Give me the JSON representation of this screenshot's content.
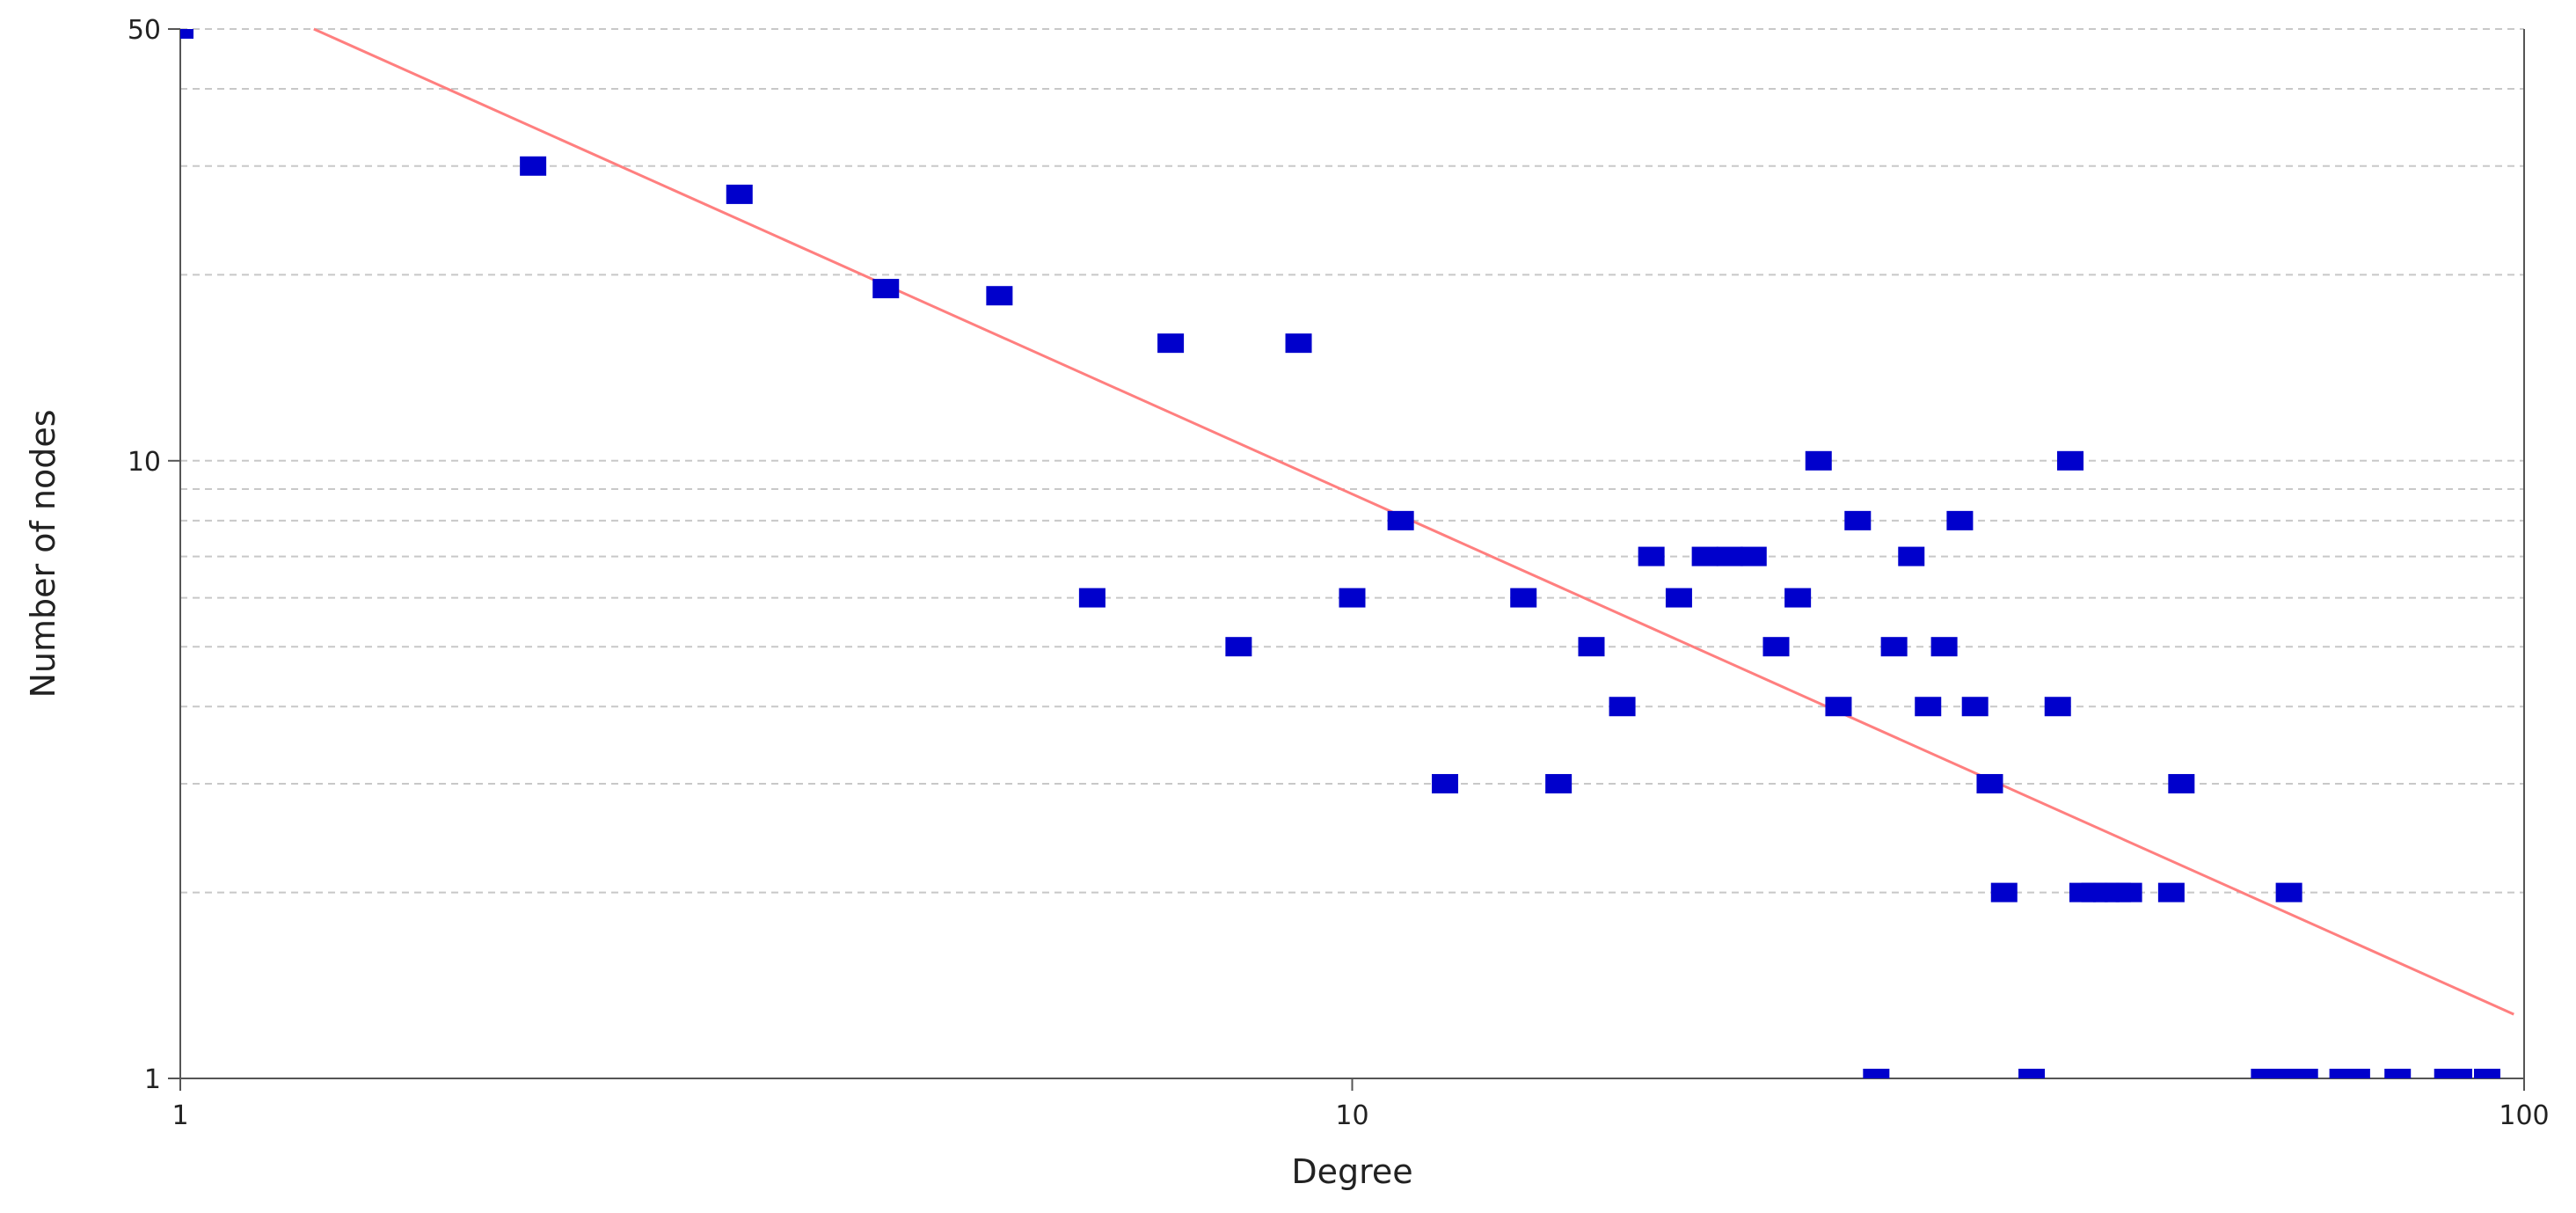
{
  "chart_data": {
    "type": "scatter",
    "title": "",
    "xlabel": "Degree",
    "ylabel": "Number of nodes",
    "xscale": "log",
    "yscale": "log",
    "xlim": [
      1,
      100
    ],
    "ylim": [
      1,
      50
    ],
    "x_ticks": [
      1,
      10,
      100
    ],
    "x_tick_labels": [
      "1",
      "10",
      "100"
    ],
    "y_ticks": [
      1,
      10,
      50
    ],
    "y_tick_labels": [
      "1",
      "10",
      "50"
    ],
    "y_grid": [
      2,
      3,
      4,
      5,
      6,
      7,
      8,
      9,
      10,
      20,
      30,
      40
    ],
    "grid": true,
    "colors": {
      "points": "#0000cc",
      "fit_line": "#ff7f7f",
      "axis": "#555555",
      "grid": "#c8c8c8"
    },
    "series": [
      {
        "points": [
          [
            1,
            50
          ],
          [
            2,
            30
          ],
          [
            3,
            27
          ],
          [
            4,
            19
          ],
          [
            5,
            18.5
          ],
          [
            7,
            15.5
          ],
          [
            9,
            15.5
          ],
          [
            6,
            6
          ],
          [
            8,
            5
          ],
          [
            10,
            6
          ],
          [
            11,
            8
          ],
          [
            12,
            3
          ],
          [
            14,
            6
          ],
          [
            15,
            3
          ],
          [
            16,
            5
          ],
          [
            17,
            4
          ],
          [
            18,
            7
          ],
          [
            19,
            6
          ],
          [
            20,
            7
          ],
          [
            21,
            7
          ],
          [
            22,
            7
          ],
          [
            23,
            5
          ],
          [
            24,
            6
          ],
          [
            25,
            10
          ],
          [
            26,
            4
          ],
          [
            27,
            8
          ],
          [
            28,
            1
          ],
          [
            29,
            5
          ],
          [
            30,
            7
          ],
          [
            31,
            4
          ],
          [
            32,
            5
          ],
          [
            33,
            8
          ],
          [
            34,
            4
          ],
          [
            35,
            3
          ],
          [
            36,
            2
          ],
          [
            38,
            1
          ],
          [
            40,
            4
          ],
          [
            41,
            10
          ],
          [
            42,
            2
          ],
          [
            43,
            2
          ],
          [
            44,
            2
          ],
          [
            45,
            2
          ],
          [
            46,
            2
          ],
          [
            50,
            2
          ],
          [
            51,
            3
          ],
          [
            60,
            1
          ],
          [
            62,
            1
          ],
          [
            63,
            2
          ],
          [
            65,
            1
          ],
          [
            70,
            1
          ],
          [
            72,
            1
          ],
          [
            78,
            1
          ],
          [
            86,
            1
          ],
          [
            88,
            1
          ],
          [
            93,
            1
          ]
        ]
      }
    ],
    "fit_line": {
      "points": [
        [
          1.3,
          50
        ],
        [
          98,
          1.27
        ]
      ]
    }
  }
}
